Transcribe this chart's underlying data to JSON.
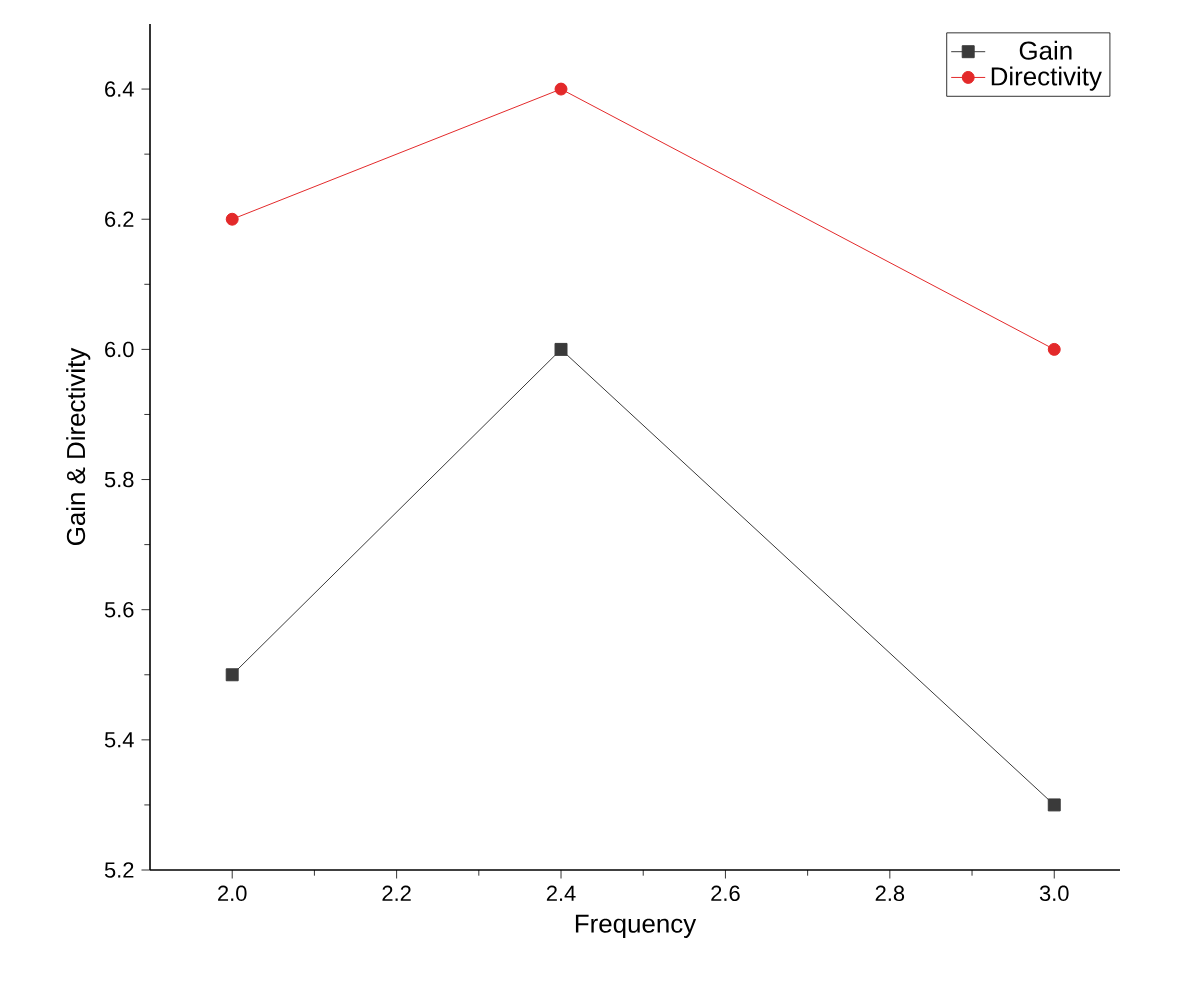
{
  "chart_data": {
    "type": "line",
    "xlabel": "Frequency",
    "ylabel": "Gain & Directivity",
    "x": [
      2.0,
      2.4,
      3.0
    ],
    "series": [
      {
        "name": "Gain",
        "color": "#3a3a3a",
        "values": [
          5.5,
          6.0,
          5.3
        ],
        "marker": "square"
      },
      {
        "name": "Directivity",
        "color": "#e3292a",
        "values": [
          6.2,
          6.4,
          6.0
        ],
        "marker": "circle"
      }
    ],
    "xlim": [
      1.9,
      3.08
    ],
    "ylim": [
      5.2,
      6.5
    ],
    "xticks": [
      {
        "value": 2.0,
        "label": "2.0"
      },
      2.2,
      2.4,
      2.6,
      2.8,
      {
        "value": 3.0,
        "label": "3.0"
      }
    ],
    "yticks": [
      5.2,
      5.4,
      5.6,
      5.8,
      {
        "value": 6.0,
        "label": "6.0"
      },
      6.2,
      6.4
    ],
    "legend": "top right",
    "grid": false,
    "line_style": "solid"
  }
}
